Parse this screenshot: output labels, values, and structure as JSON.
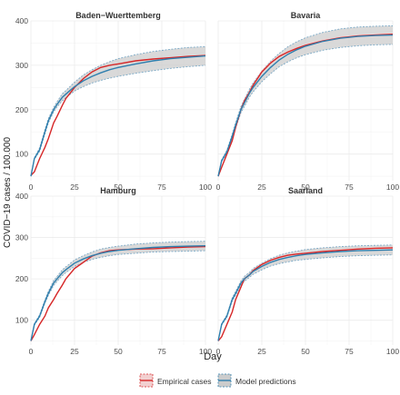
{
  "colors": {
    "empirical": "#d62728",
    "empirical_band": "#f2d0d0",
    "model": "#2f7fae",
    "model_band_fill": "#cccccc",
    "model_band_edge": "#7ba9c6",
    "grid": "#ebebeb",
    "text": "#333333"
  },
  "y_axis_title": "COVID−19 cases / 100.000",
  "x_axis_title": "Day",
  "legend": {
    "empirical_label": "Empirical cases",
    "model_label": "Model predictions"
  },
  "chart_data": [
    {
      "type": "line",
      "title": "Baden−Wuerttemberg",
      "xlim": [
        0,
        100
      ],
      "ylim": [
        40,
        400
      ],
      "x_ticks": [
        0,
        25,
        50,
        75,
        100
      ],
      "y_ticks": [
        100,
        200,
        300,
        400
      ],
      "grid": true,
      "series": [
        {
          "name": "Empirical cases",
          "x": [
            0,
            2,
            5,
            8,
            10,
            13,
            15,
            18,
            20,
            25,
            30,
            35,
            40,
            45,
            50,
            60,
            70,
            80,
            90,
            100
          ],
          "values": [
            52,
            60,
            90,
            115,
            135,
            170,
            185,
            210,
            225,
            250,
            270,
            285,
            295,
            300,
            303,
            310,
            314,
            317,
            320,
            322
          ]
        },
        {
          "name": "Model predictions",
          "x": [
            0,
            2,
            5,
            8,
            10,
            13,
            15,
            18,
            20,
            25,
            30,
            35,
            40,
            45,
            50,
            60,
            70,
            80,
            90,
            100
          ],
          "values": [
            50,
            90,
            110,
            150,
            175,
            200,
            212,
            228,
            235,
            252,
            265,
            275,
            283,
            290,
            295,
            303,
            310,
            315,
            318,
            321
          ],
          "lower": [
            50,
            88,
            106,
            145,
            170,
            195,
            206,
            220,
            227,
            242,
            252,
            260,
            266,
            271,
            275,
            282,
            288,
            293,
            297,
            300
          ],
          "upper": [
            50,
            92,
            114,
            155,
            180,
            205,
            218,
            236,
            243,
            262,
            278,
            290,
            300,
            308,
            315,
            324,
            331,
            336,
            340,
            342
          ]
        }
      ]
    },
    {
      "type": "line",
      "title": "Bavaria",
      "xlim": [
        0,
        100
      ],
      "ylim": [
        40,
        400
      ],
      "x_ticks": [
        0,
        25,
        50,
        75,
        100
      ],
      "y_ticks": [
        100,
        200,
        300,
        400
      ],
      "grid": true,
      "series": [
        {
          "name": "Empirical cases",
          "x": [
            0,
            2,
            5,
            8,
            10,
            13,
            15,
            18,
            20,
            25,
            30,
            35,
            40,
            45,
            50,
            60,
            70,
            80,
            90,
            100
          ],
          "values": [
            50,
            70,
            100,
            130,
            160,
            200,
            220,
            240,
            255,
            285,
            305,
            320,
            330,
            338,
            345,
            355,
            362,
            366,
            368,
            370
          ],
          "lower": [
            48,
            68,
            97,
            126,
            156,
            196,
            216,
            236,
            251,
            281,
            301,
            316,
            326,
            334,
            341,
            351,
            358,
            362,
            364,
            366
          ],
          "upper": [
            52,
            72,
            103,
            134,
            164,
            204,
            224,
            244,
            259,
            289,
            309,
            324,
            334,
            342,
            349,
            359,
            366,
            370,
            372,
            374
          ]
        },
        {
          "name": "Model predictions",
          "x": [
            0,
            2,
            5,
            8,
            10,
            13,
            15,
            18,
            20,
            25,
            30,
            35,
            40,
            45,
            50,
            60,
            70,
            80,
            90,
            100
          ],
          "values": [
            50,
            85,
            105,
            140,
            165,
            200,
            215,
            238,
            250,
            275,
            295,
            312,
            325,
            335,
            343,
            354,
            361,
            365,
            367,
            368
          ],
          "lower": [
            50,
            83,
            101,
            135,
            159,
            193,
            207,
            229,
            240,
            263,
            281,
            297,
            308,
            317,
            324,
            334,
            340,
            344,
            346,
            347
          ],
          "upper": [
            50,
            87,
            109,
            145,
            171,
            207,
            223,
            247,
            260,
            287,
            309,
            327,
            342,
            353,
            362,
            374,
            382,
            386,
            388,
            389
          ]
        }
      ]
    },
    {
      "type": "line",
      "title": "Hamburg",
      "xlim": [
        0,
        100
      ],
      "ylim": [
        40,
        400
      ],
      "x_ticks": [
        0,
        25,
        50,
        75,
        100
      ],
      "y_ticks": [
        100,
        200,
        300,
        400
      ],
      "grid": true,
      "series": [
        {
          "name": "Empirical cases",
          "x": [
            0,
            2,
            5,
            8,
            10,
            13,
            15,
            18,
            20,
            25,
            30,
            35,
            40,
            45,
            50,
            60,
            70,
            80,
            90,
            100
          ],
          "values": [
            50,
            65,
            90,
            110,
            130,
            150,
            165,
            185,
            200,
            225,
            240,
            255,
            263,
            268,
            270,
            272,
            273,
            275,
            277,
            278
          ],
          "lower": [
            48,
            63,
            87,
            107,
            127,
            147,
            162,
            182,
            197,
            222,
            237,
            252,
            260,
            265,
            267,
            269,
            270,
            272,
            274,
            275
          ],
          "upper": [
            52,
            67,
            93,
            113,
            133,
            153,
            168,
            188,
            203,
            228,
            243,
            258,
            266,
            271,
            273,
            275,
            276,
            278,
            280,
            281
          ]
        },
        {
          "name": "Model predictions",
          "x": [
            0,
            2,
            5,
            8,
            10,
            13,
            15,
            18,
            20,
            25,
            30,
            35,
            40,
            45,
            50,
            60,
            70,
            80,
            90,
            100
          ],
          "values": [
            50,
            90,
            110,
            145,
            165,
            190,
            200,
            215,
            222,
            238,
            248,
            256,
            262,
            266,
            269,
            273,
            276,
            278,
            279,
            280
          ],
          "lower": [
            50,
            88,
            107,
            141,
            160,
            184,
            194,
            208,
            215,
            230,
            240,
            247,
            252,
            256,
            259,
            262,
            265,
            266,
            267,
            268
          ],
          "upper": [
            50,
            92,
            113,
            149,
            170,
            196,
            206,
            222,
            229,
            246,
            256,
            265,
            272,
            276,
            279,
            284,
            287,
            289,
            290,
            291
          ]
        }
      ]
    },
    {
      "type": "line",
      "title": "Saarland",
      "xlim": [
        0,
        100
      ],
      "ylim": [
        40,
        400
      ],
      "x_ticks": [
        0,
        25,
        50,
        75,
        100
      ],
      "y_ticks": [
        100,
        200,
        300,
        400
      ],
      "grid": true,
      "series": [
        {
          "name": "Empirical cases",
          "x": [
            0,
            2,
            5,
            8,
            10,
            13,
            15,
            18,
            20,
            25,
            30,
            35,
            40,
            45,
            50,
            60,
            70,
            80,
            90,
            100
          ],
          "values": [
            50,
            60,
            90,
            120,
            150,
            180,
            200,
            210,
            220,
            235,
            245,
            252,
            257,
            260,
            262,
            266,
            269,
            272,
            274,
            275
          ],
          "lower": [
            48,
            58,
            87,
            117,
            147,
            177,
            197,
            207,
            217,
            232,
            242,
            249,
            254,
            257,
            259,
            263,
            266,
            269,
            271,
            272
          ],
          "upper": [
            52,
            62,
            93,
            123,
            153,
            183,
            203,
            213,
            223,
            238,
            248,
            255,
            260,
            263,
            265,
            269,
            272,
            275,
            277,
            278
          ]
        },
        {
          "name": "Model predictions",
          "x": [
            0,
            2,
            5,
            8,
            10,
            13,
            15,
            18,
            20,
            25,
            30,
            35,
            40,
            45,
            50,
            60,
            70,
            80,
            90,
            100
          ],
          "values": [
            50,
            90,
            110,
            150,
            165,
            190,
            200,
            210,
            218,
            230,
            240,
            247,
            252,
            256,
            259,
            263,
            266,
            268,
            269,
            270
          ],
          "lower": [
            50,
            88,
            107,
            146,
            160,
            185,
            194,
            204,
            211,
            222,
            231,
            237,
            241,
            245,
            247,
            251,
            254,
            256,
            257,
            258
          ],
          "upper": [
            50,
            92,
            113,
            154,
            170,
            195,
            206,
            216,
            225,
            238,
            249,
            257,
            263,
            267,
            271,
            275,
            278,
            280,
            281,
            282
          ]
        }
      ]
    }
  ]
}
